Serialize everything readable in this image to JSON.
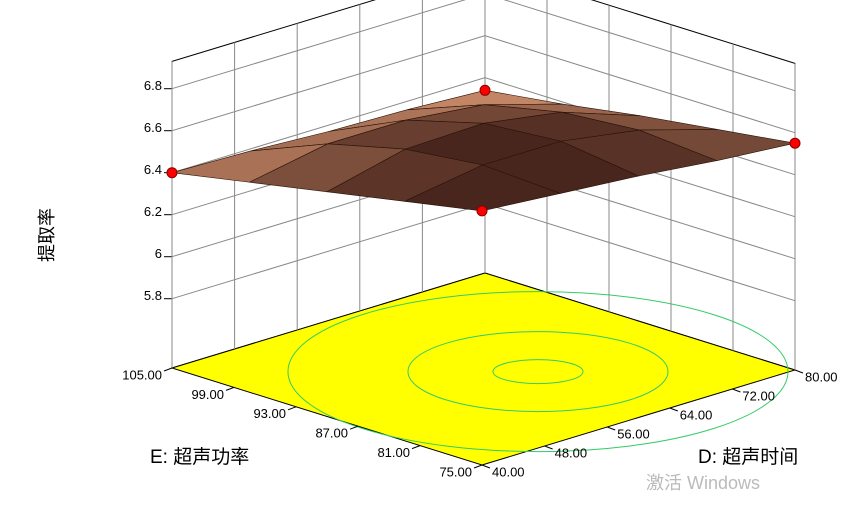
{
  "chart_data": {
    "type": "surface",
    "zlabel": "提取率",
    "xlabel": "D: 超声时间",
    "ylabel": "E: 超声功率",
    "x": [
      40,
      50,
      60,
      70,
      80
    ],
    "y": [
      75,
      82.5,
      90,
      97.5,
      105
    ],
    "z": [
      [
        6.68,
        6.65,
        6.62,
        6.58,
        6.55
      ],
      [
        6.61,
        6.67,
        6.67,
        6.61,
        6.5
      ],
      [
        6.54,
        6.63,
        6.64,
        6.58,
        6.45
      ],
      [
        6.47,
        6.54,
        6.54,
        6.5,
        6.39
      ],
      [
        6.4,
        6.39,
        6.37,
        6.36,
        6.34
      ]
    ],
    "xlim": [
      40,
      80
    ],
    "ylim": [
      75,
      105
    ],
    "zlim": [
      5.47,
      6.93
    ],
    "xticks": [
      {
        "value": 40,
        "label": "40.00"
      },
      {
        "value": 48,
        "label": "48.00"
      },
      {
        "value": 56,
        "label": "56.00"
      },
      {
        "value": 64,
        "label": "64.00"
      },
      {
        "value": 72,
        "label": "72.00"
      },
      {
        "value": 80,
        "label": "80.00"
      }
    ],
    "yticks": [
      {
        "value": 75,
        "label": "75.00"
      },
      {
        "value": 81,
        "label": "81.00"
      },
      {
        "value": 87,
        "label": "87.00"
      },
      {
        "value": 93,
        "label": "93.00"
      },
      {
        "value": 99,
        "label": "99.00"
      },
      {
        "value": 105,
        "label": "105.00"
      }
    ],
    "zticks": [
      5.8,
      6,
      6.2,
      6.4,
      6.6,
      6.8
    ],
    "design_points": {
      "x": [
        40,
        40,
        80,
        80
      ],
      "y": [
        75,
        105,
        75,
        105
      ],
      "z": [
        6.68,
        6.4,
        6.55,
        6.34
      ]
    },
    "floor_color": "#ffff00",
    "point_color": "#ff0000"
  },
  "watermark": "激活 Windows"
}
